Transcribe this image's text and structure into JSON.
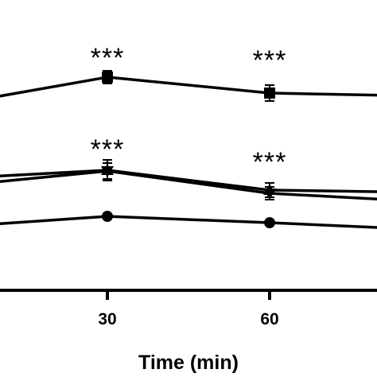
{
  "chart_data": {
    "type": "line",
    "xlabel": "Time (min)",
    "ylabel": "",
    "x_ticks": [
      30,
      60
    ],
    "grid": false,
    "legend": "none",
    "series": [
      {
        "marker": "square",
        "x": [
          0,
          30,
          60,
          90
        ],
        "y": [
          133,
          97,
          117,
          121
        ],
        "err": [
          null,
          8,
          10,
          null
        ]
      },
      {
        "marker": "triangle",
        "x": [
          0,
          30,
          60,
          90
        ],
        "y": [
          225,
          214,
          239,
          242
        ],
        "err": [
          null,
          13,
          9,
          null
        ]
      },
      {
        "marker": "diamond",
        "x": [
          0,
          30,
          60,
          90
        ],
        "y": [
          235,
          215,
          243,
          254
        ],
        "err": [
          null,
          10,
          8,
          null
        ]
      },
      {
        "marker": "circle",
        "x": [
          0,
          30,
          60,
          90
        ],
        "y": [
          286,
          272,
          280,
          289
        ],
        "err": [
          null,
          0,
          0,
          null
        ]
      }
    ],
    "annotations": [
      {
        "text": "***",
        "x": 30,
        "y": 72
      },
      {
        "text": "***",
        "x": 60,
        "y": 75
      },
      {
        "text": "***",
        "x": 30,
        "y": 187
      },
      {
        "text": "***",
        "x": 60,
        "y": 203
      }
    ]
  }
}
